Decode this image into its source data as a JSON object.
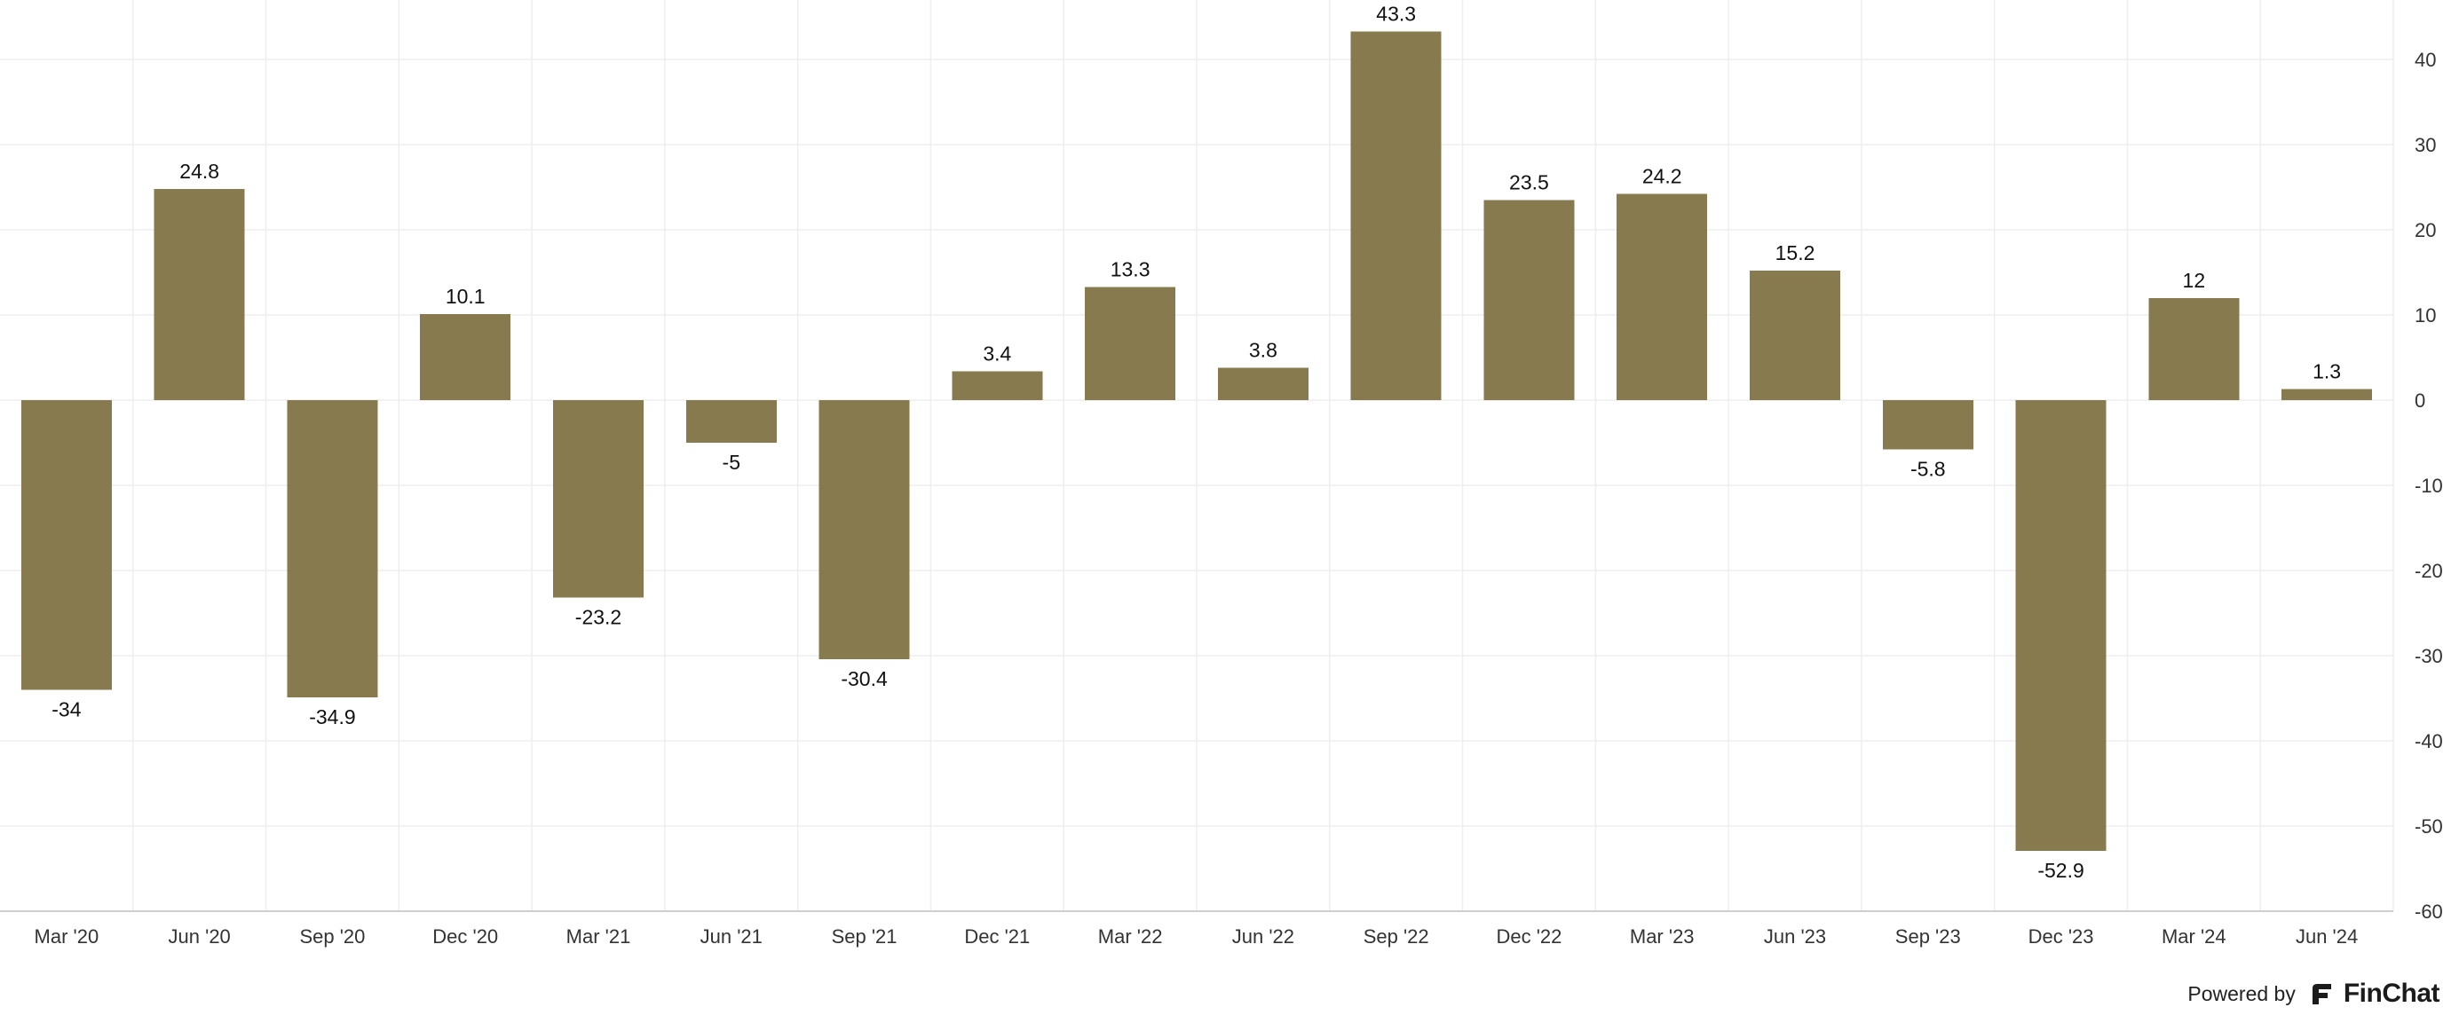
{
  "chart_data": {
    "type": "bar",
    "categories": [
      "Mar '20",
      "Jun '20",
      "Sep '20",
      "Dec '20",
      "Mar '21",
      "Jun '21",
      "Sep '21",
      "Dec '21",
      "Mar '22",
      "Jun '22",
      "Sep '22",
      "Dec '22",
      "Mar '23",
      "Jun '23",
      "Sep '23",
      "Dec '23",
      "Mar '24",
      "Jun '24"
    ],
    "values": [
      -34,
      24.8,
      -34.9,
      10.1,
      -23.2,
      -5,
      -30.4,
      3.4,
      13.3,
      3.8,
      43.3,
      23.5,
      24.2,
      15.2,
      -5.8,
      -52.9,
      12,
      1.3
    ],
    "ylim": [
      -60,
      45
    ],
    "yticks": [
      40,
      30,
      20,
      10,
      0,
      -10,
      -20,
      -30,
      -40,
      -50,
      -60
    ],
    "bar_color": "#877a4f",
    "grid": true,
    "legend": "none",
    "title": "",
    "xlabel": "",
    "ylabel": ""
  },
  "footer": {
    "powered_by": "Powered by",
    "brand": "FinChat",
    "brand_icon": "finchat-logo-icon"
  }
}
